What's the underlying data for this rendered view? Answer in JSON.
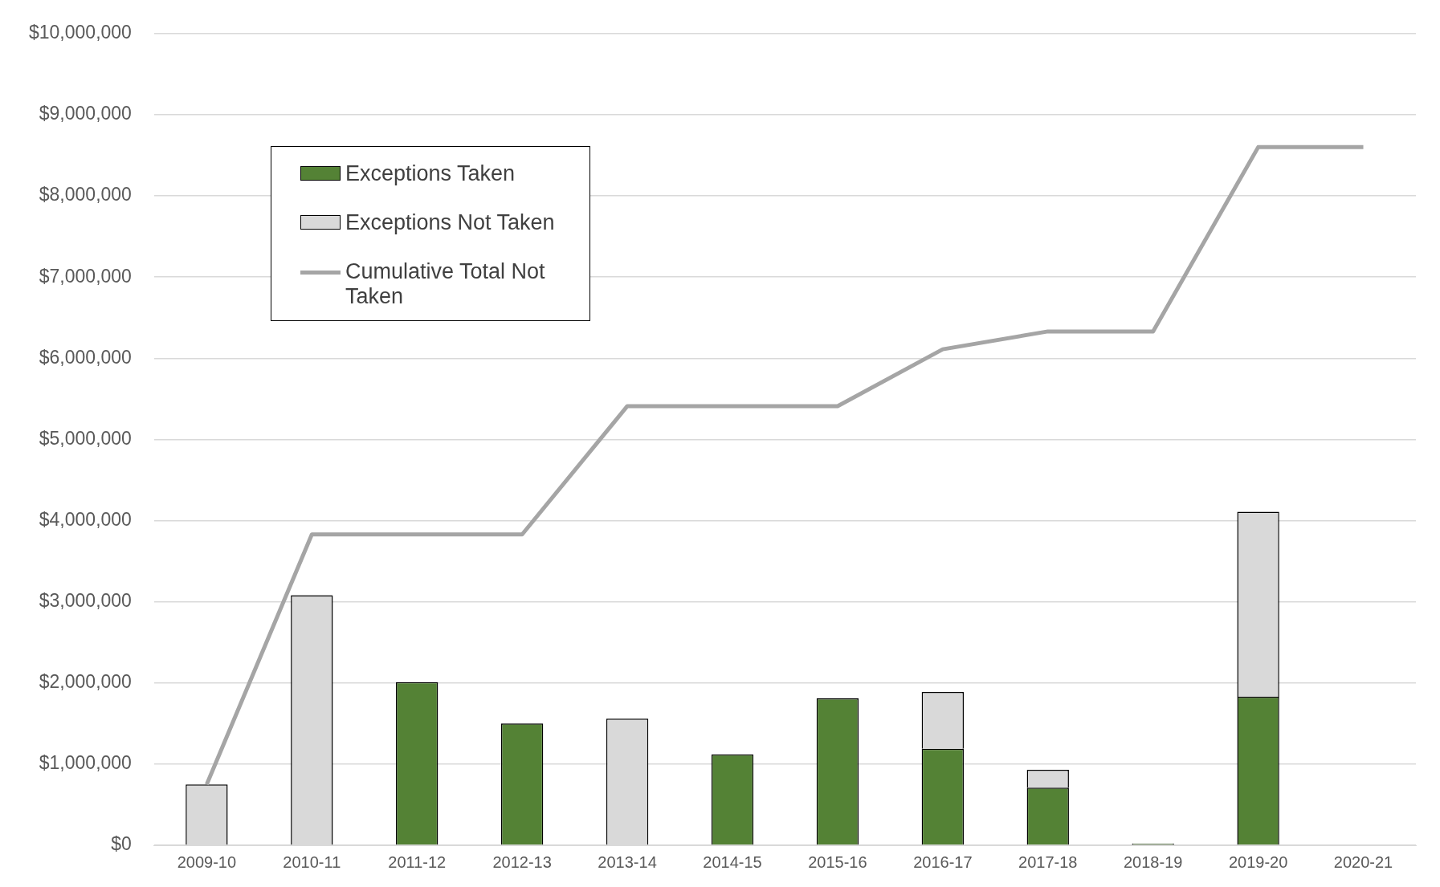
{
  "chart_data": {
    "type": "bar",
    "stacked": true,
    "categories": [
      "2009-10",
      "2010-11",
      "2011-12",
      "2012-13",
      "2013-14",
      "2014-15",
      "2015-16",
      "2016-17",
      "2017-18",
      "2018-19",
      "2019-20",
      "2020-21"
    ],
    "series": [
      {
        "name": "Exceptions Taken",
        "color": "#548235",
        "values": [
          null,
          null,
          2010000,
          1500000,
          null,
          1120000,
          1810000,
          1190000,
          710000,
          20000,
          1830000,
          null
        ]
      },
      {
        "name": "Exceptions Not Taken",
        "color": "#d9d9d9",
        "values": [
          750000,
          3080000,
          null,
          null,
          1560000,
          null,
          null,
          700000,
          220000,
          null,
          2280000,
          null
        ]
      },
      {
        "name": "Cumulative Total Not Taken",
        "type": "line",
        "color": "#a5a5a5",
        "marker": "none",
        "values": [
          750000,
          3830000,
          3830000,
          3830000,
          5410000,
          5410000,
          5410000,
          6110000,
          6330000,
          6330000,
          8600000,
          8600000
        ]
      }
    ],
    "ylim": [
      0,
      10000000
    ],
    "yticks": [
      {
        "value": 0,
        "label": "$0"
      },
      {
        "value": 1000000,
        "label": "$1,000,000"
      },
      {
        "value": 2000000,
        "label": "$2,000,000"
      },
      {
        "value": 3000000,
        "label": "$3,000,000"
      },
      {
        "value": 4000000,
        "label": "$4,000,000"
      },
      {
        "value": 5000000,
        "label": "$5,000,000"
      },
      {
        "value": 6000000,
        "label": "$6,000,000"
      },
      {
        "value": 7000000,
        "label": "$7,000,000"
      },
      {
        "value": 8000000,
        "label": "$8,000,000"
      },
      {
        "value": 9000000,
        "label": "$9,000,000"
      },
      {
        "value": 10000000,
        "label": "$10,000,000"
      }
    ],
    "grid": "y",
    "legend": "top left"
  }
}
